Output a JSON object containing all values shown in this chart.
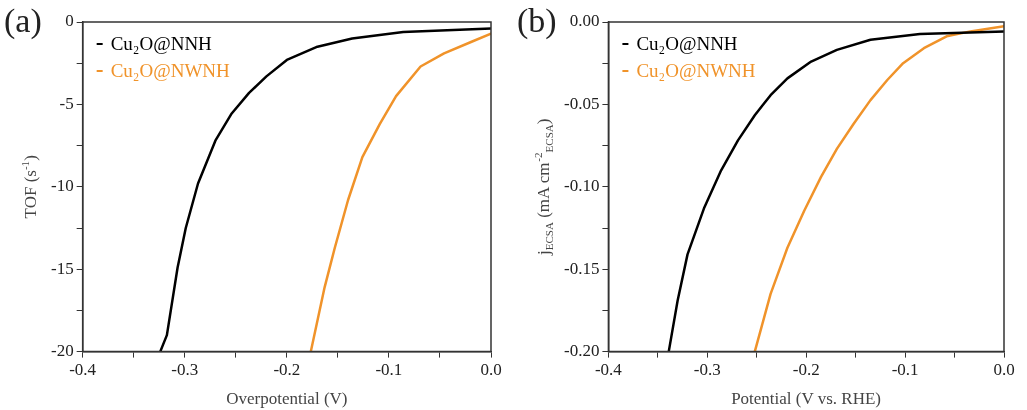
{
  "chart_data": [
    {
      "type": "line",
      "annotations": [
        "(a)"
      ],
      "xlabel": "Overpotential (V)",
      "ylabel": "TOF (s$^{-1}$)",
      "legend": "top left",
      "grid": false,
      "marker": "none",
      "line_style": "solid",
      "xlim": [
        -0.4,
        0
      ],
      "ylim": [
        -20,
        0
      ],
      "xticks": [
        -0.4,
        {
          "value": -0.35,
          "label": null
        },
        -0.3,
        {
          "value": -0.25,
          "label": null
        },
        -0.2,
        {
          "value": -0.15,
          "label": null
        },
        -0.1,
        {
          "value": -0.05,
          "label": null
        },
        {
          "value": 0,
          "label": "0.0"
        }
      ],
      "yticks": [
        -20,
        {
          "value": -17.5,
          "label": null
        },
        -15,
        {
          "value": -12.5,
          "label": null
        },
        -10,
        {
          "value": -7.5,
          "label": null
        },
        -5,
        {
          "value": -2.5,
          "label": null
        },
        0
      ],
      "series": [
        {
          "name": "Cu₂O@NNH",
          "color": "#000000",
          "x": [
            -0.324,
            -0.3175,
            -0.307,
            -0.299,
            -0.287,
            -0.27,
            -0.254,
            -0.237,
            -0.22,
            -0.2,
            -0.17,
            -0.136,
            -0.086,
            0
          ],
          "values": [
            -20,
            -19,
            -14.9,
            -12.5,
            -9.8,
            -7.2,
            -5.55,
            -4.3,
            -3.3,
            -2.3,
            -1.5,
            -1,
            -0.6,
            -0.4
          ]
        },
        {
          "name": "Cu₂O@NWNH",
          "color": "#f0932a",
          "x": [
            -0.1765,
            -0.163,
            -0.153,
            -0.14,
            -0.126,
            -0.109,
            -0.093,
            -0.069,
            -0.046,
            -0.019,
            0
          ],
          "values": [
            -20,
            -16.1,
            -13.7,
            -10.8,
            -8.2,
            -6.2,
            -4.5,
            -2.7,
            -1.9,
            -1.2,
            -0.7
          ]
        }
      ]
    },
    {
      "type": "line",
      "annotations": [
        "(b)"
      ],
      "xlabel": "Potential (V vs. RHE)",
      "ylabel": "j$_{ECSA}$ (mA cm$^{-2}$$_{ECSA}$)",
      "legend": "top left",
      "grid": false,
      "marker": "none",
      "line_style": "solid",
      "xlim": [
        -0.4,
        0
      ],
      "ylim": [
        -0.2,
        0
      ],
      "xticks": [
        -0.4,
        {
          "value": -0.35,
          "label": null
        },
        -0.3,
        {
          "value": -0.25,
          "label": null
        },
        -0.2,
        {
          "value": -0.15,
          "label": null
        },
        -0.1,
        {
          "value": -0.05,
          "label": null
        },
        {
          "value": 0,
          "label": "0.0"
        }
      ],
      "yticks": [
        {
          "value": -0.2,
          "label": "-0.20"
        },
        {
          "value": -0.175,
          "label": null
        },
        {
          "value": -0.15,
          "label": "-0.15"
        },
        {
          "value": -0.125,
          "label": null
        },
        {
          "value": -0.1,
          "label": "-0.10"
        },
        {
          "value": -0.075,
          "label": null
        },
        {
          "value": -0.05,
          "label": "-0.05"
        },
        {
          "value": -0.025,
          "label": null
        },
        {
          "value": 0,
          "label": "0.00"
        }
      ],
      "series": [
        {
          "name": "Cu₂O@NNH",
          "color": "#000000",
          "x": [
            -0.339,
            -0.33,
            -0.32,
            -0.303,
            -0.286,
            -0.269,
            -0.252,
            -0.236,
            -0.219,
            -0.195,
            -0.169,
            -0.135,
            -0.085,
            0
          ],
          "values": [
            -0.2,
            -0.169,
            -0.141,
            -0.1125,
            -0.09,
            -0.0718,
            -0.0566,
            -0.0444,
            -0.0342,
            -0.024,
            -0.0169,
            -0.0108,
            -0.0073,
            -0.0057
          ]
        },
        {
          "name": "Cu₂O@NWNH",
          "color": "#f0932a",
          "x": [
            -0.252,
            -0.236,
            -0.219,
            -0.202,
            -0.185,
            -0.169,
            -0.152,
            -0.135,
            -0.118,
            -0.102,
            -0.081,
            -0.058,
            -0.034,
            0
          ],
          "values": [
            -0.2,
            -0.165,
            -0.137,
            -0.1145,
            -0.094,
            -0.077,
            -0.0617,
            -0.0474,
            -0.0352,
            -0.025,
            -0.0159,
            -0.0087,
            -0.0057,
            -0.0026
          ]
        }
      ]
    }
  ]
}
